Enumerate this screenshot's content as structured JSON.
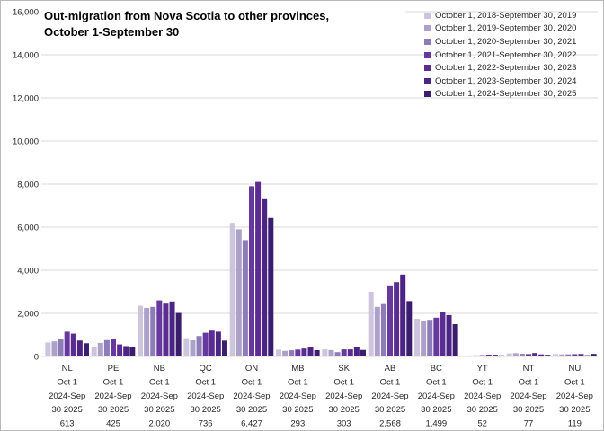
{
  "frame": {
    "background": "#ffffff",
    "border_color": "#b9b9b9",
    "gridline_color": "#d9d9d9",
    "text_color": "#262626"
  },
  "title": {
    "line1": "Out-migration from Nova Scotia to other provinces,",
    "line2": "October 1-September 30"
  },
  "chart_data": {
    "type": "bar",
    "title": "Out-migration from Nova Scotia to other provinces, October 1-September 30",
    "categories": [
      "NL",
      "PE",
      "NB",
      "QC",
      "ON",
      "MB",
      "SK",
      "AB",
      "BC",
      "YT",
      "NT",
      "NU"
    ],
    "xtick_sublabel_lines": [
      "Oct 1",
      "2024-Sep",
      "30 2025"
    ],
    "latest_value_labels": [
      "613",
      "425",
      "2,020",
      "736",
      "6,427",
      "293",
      "303",
      "2,568",
      "1,499",
      "52",
      "77",
      "119"
    ],
    "series": [
      {
        "name": "October 1, 2018-September 30, 2019",
        "color": "#ccc5dd",
        "values": [
          650,
          450,
          2350,
          850,
          6200,
          320,
          330,
          3000,
          1750,
          40,
          140,
          110
        ]
      },
      {
        "name": "October 1, 2019-September 30, 2020",
        "color": "#aba1c9",
        "values": [
          700,
          630,
          2250,
          750,
          5900,
          260,
          300,
          2300,
          1640,
          45,
          150,
          95
        ]
      },
      {
        "name": "October 1, 2020-September 30, 2021",
        "color": "#8d7cb8",
        "values": [
          820,
          760,
          2300,
          950,
          5400,
          290,
          200,
          2430,
          1700,
          50,
          120,
          100
        ]
      },
      {
        "name": "October 1, 2021-September 30, 2022",
        "color": "#67399f",
        "values": [
          1150,
          800,
          2600,
          1100,
          7900,
          320,
          330,
          3300,
          1800,
          60,
          110,
          105
        ]
      },
      {
        "name": "October 1, 2022-September 30, 2023",
        "color": "#5b2d92",
        "values": [
          1060,
          560,
          2450,
          1200,
          8100,
          370,
          330,
          3450,
          2080,
          85,
          160,
          115
        ]
      },
      {
        "name": "October 1, 2023-September 30, 2024",
        "color": "#4c2483",
        "values": [
          740,
          480,
          2550,
          1150,
          7300,
          450,
          450,
          3800,
          1920,
          80,
          95,
          60
        ]
      },
      {
        "name": "October 1, 2024-September 30, 2025",
        "color": "#3b1d6e",
        "values": [
          613,
          425,
          2020,
          736,
          6427,
          293,
          303,
          2568,
          1499,
          52,
          77,
          119
        ]
      }
    ],
    "ylim": [
      0,
      16000
    ],
    "ytick_step": 2000,
    "ytick_labels": [
      "0",
      "2,000",
      "4,000",
      "6,000",
      "8,000",
      "10,000",
      "12,000",
      "14,000",
      "16,000"
    ],
    "grid": true,
    "legend_position": "top-right",
    "xlabel": "",
    "ylabel": ""
  }
}
